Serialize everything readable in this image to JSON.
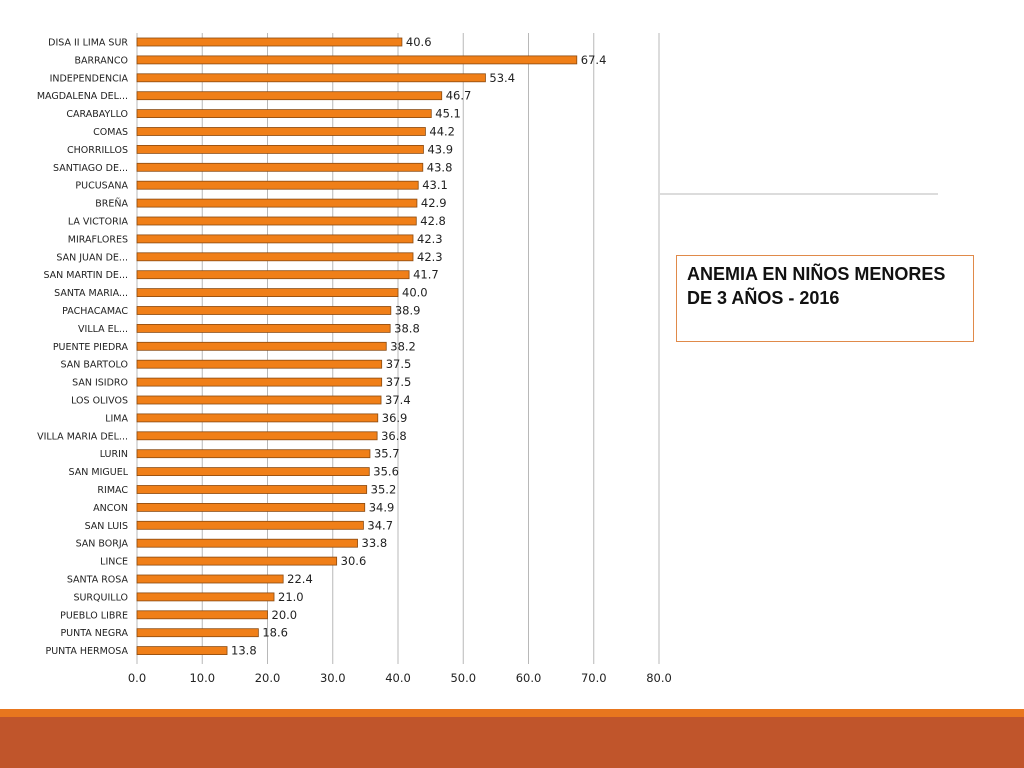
{
  "colors": {
    "bar_fill": "#f07f18",
    "bar_stroke": "#8a4a10",
    "grid": "#b8b8b8",
    "footer_light": "#e8761e",
    "footer_dark": "#c0552b",
    "title_border": "#e08a4a"
  },
  "chart_data": {
    "type": "bar",
    "orientation": "horizontal",
    "title": "ANEMIA EN NIÑOS MENORES DE 3 AÑOS - 2016",
    "xlim": [
      0,
      80
    ],
    "xticks": [
      "0.0",
      "10.0",
      "20.0",
      "30.0",
      "40.0",
      "50.0",
      "60.0",
      "70.0",
      "80.0"
    ],
    "grid": "vertical",
    "categories": [
      "DISA II LIMA SUR",
      "BARRANCO",
      "INDEPENDENCIA",
      "MAGDALENA DEL...",
      "CARABAYLLO",
      "COMAS",
      "CHORRILLOS",
      "SANTIAGO DE...",
      "PUCUSANA",
      "BREÑA",
      "LA VICTORIA",
      "MIRAFLORES",
      "SAN JUAN DE...",
      "SAN MARTIN DE...",
      "SANTA MARIA...",
      "PACHACAMAC",
      "VILLA EL...",
      "PUENTE PIEDRA",
      "SAN BARTOLO",
      "SAN ISIDRO",
      "LOS OLIVOS",
      "LIMA",
      "VILLA MARIA DEL...",
      "LURIN",
      "SAN MIGUEL",
      "RIMAC",
      "ANCON",
      "SAN LUIS",
      "SAN BORJA",
      "LINCE",
      "SANTA ROSA",
      "SURQUILLO",
      "PUEBLO LIBRE",
      "PUNTA NEGRA",
      "PUNTA HERMOSA"
    ],
    "values": [
      40.6,
      67.4,
      53.4,
      46.7,
      45.1,
      44.2,
      43.9,
      43.8,
      43.1,
      42.9,
      42.8,
      42.3,
      42.3,
      41.7,
      40.0,
      38.9,
      38.8,
      38.2,
      37.5,
      37.5,
      37.4,
      36.9,
      36.8,
      35.7,
      35.6,
      35.2,
      34.9,
      34.7,
      33.8,
      30.6,
      22.4,
      21.0,
      20.0,
      18.6,
      13.8
    ],
    "value_labels": [
      "40.6",
      "67.4",
      "53.4",
      "46.7",
      "45.1",
      "44.2",
      "43.9",
      "43.8",
      "43.1",
      "42.9",
      "42.8",
      "42.3",
      "42.3",
      "41.7",
      "40.0",
      "38.9",
      "38.8",
      "38.2",
      "37.5",
      "37.5",
      "37.4",
      "36.9",
      "36.8",
      "35.7",
      "35.6",
      "35.2",
      "34.9",
      "34.7",
      "33.8",
      "30.6",
      "22.4",
      "21.0",
      "20.0",
      "18.6",
      "13.8"
    ]
  }
}
